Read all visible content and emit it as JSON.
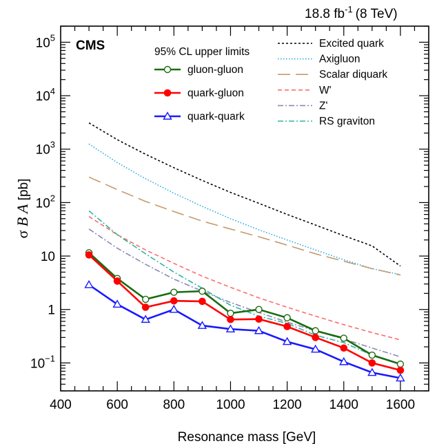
{
  "chart_data": {
    "type": "line",
    "title": "",
    "lumi_label": "18.8 fb",
    "lumi_sup": "-1",
    "lumi_energy": "(8 TeV)",
    "cms_label": "CMS",
    "xlabel": "Resonance mass [GeV]",
    "ylabel_sigma": "σ",
    "ylabel_B": "B",
    "ylabel_A": "A",
    "ylabel_unit": "[pb]",
    "xlim": [
      400,
      1700
    ],
    "ylim": [
      0.03,
      200000
    ],
    "yscale": "log",
    "x_ticks": [
      "400",
      "600",
      "800",
      "1000",
      "1200",
      "1400",
      "1600"
    ],
    "x_tick_values": [
      400,
      600,
      800,
      1000,
      1200,
      1400,
      1600
    ],
    "y_ticks": [
      {
        "value": 0.1,
        "base": "10",
        "exp": "−1"
      },
      {
        "value": 1,
        "base": "1",
        "exp": ""
      },
      {
        "value": 10,
        "base": "10",
        "exp": ""
      },
      {
        "value": 100,
        "base": "10",
        "exp": "2"
      },
      {
        "value": 1000,
        "base": "10",
        "exp": "3"
      },
      {
        "value": 10000,
        "base": "10",
        "exp": "4"
      },
      {
        "value": 100000,
        "base": "10",
        "exp": "5"
      }
    ],
    "legend_header": "95% CL upper limits",
    "x": [
      500,
      600,
      700,
      800,
      900,
      1000,
      1100,
      1200,
      1300,
      1400,
      1500,
      1600
    ],
    "limits": [
      {
        "name": "gluon-gluon",
        "color": "#1a6b12",
        "marker": "open-circle",
        "values": [
          11.5,
          3.8,
          1.55,
          2.1,
          2.2,
          0.85,
          1.0,
          0.7,
          0.4,
          0.29,
          0.14,
          0.095
        ]
      },
      {
        "name": "quark-gluon",
        "color": "#ff0000",
        "marker": "filled-circle",
        "values": [
          10.5,
          3.4,
          1.1,
          1.45,
          1.42,
          0.65,
          0.66,
          0.48,
          0.3,
          0.19,
          0.1,
          0.073
        ]
      },
      {
        "name": "quark-quark",
        "color": "#1919ff",
        "marker": "open-triangle",
        "values": [
          2.9,
          1.25,
          0.65,
          1.0,
          0.5,
          0.43,
          0.4,
          0.25,
          0.18,
          0.105,
          0.066,
          0.052
        ]
      }
    ],
    "models": [
      {
        "name": "Excited quark",
        "color": "#000000",
        "dash": "3,3",
        "values": [
          3100,
          1500,
          800,
          450,
          260,
          155,
          97,
          60,
          38,
          24,
          15.5,
          6.5
        ]
      },
      {
        "name": "Axigluon",
        "color": "#22aadd",
        "dash": "1.5,2.5",
        "values": [
          1250,
          560,
          280,
          150,
          85,
          50,
          31,
          20,
          13,
          8.5,
          5.8,
          4.5
        ]
      },
      {
        "name": "Scalar diquark",
        "color": "#c49a6c",
        "dash": "18,8",
        "values": [
          300,
          175,
          105,
          68,
          45,
          32,
          23,
          16,
          11,
          8,
          5.8,
          4.4
        ]
      },
      {
        "name": "W'",
        "color": "#ff6b6b",
        "dash": "6,4",
        "values": [
          55,
          25,
          13,
          7.3,
          4.2,
          2.6,
          1.65,
          1.1,
          0.75,
          0.52,
          0.37,
          0.27
        ]
      },
      {
        "name": "Z'",
        "color": "#8a87b8",
        "dash": "8,3,2,3",
        "values": [
          32,
          14,
          7,
          3.7,
          2.2,
          1.35,
          0.88,
          0.58,
          0.4,
          0.28,
          0.19,
          0.13
        ]
      },
      {
        "name": "RS graviton",
        "color": "#2fb5a0",
        "dash": "8,3,2,3",
        "values": [
          70,
          25,
          11,
          5,
          2.5,
          1.2,
          0.75,
          0.55,
          0.33,
          0.24,
          0.14,
          0.095
        ]
      }
    ]
  }
}
